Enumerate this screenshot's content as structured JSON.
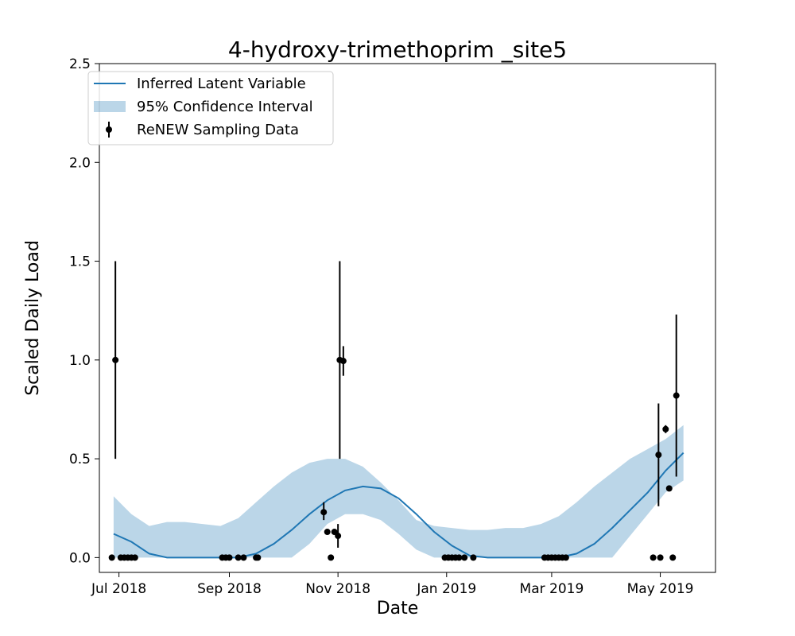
{
  "chart_data": {
    "type": "line",
    "title": "4-hydroxy-trimethoprim _site5",
    "xlabel": "Date",
    "ylabel": "Scaled Daily Load",
    "xlim": [
      "2018-06-20",
      "2019-06-01"
    ],
    "ylim": [
      -0.075,
      2.5
    ],
    "x_ticks": [
      {
        "date": "2018-07-01",
        "label": "Jul 2018"
      },
      {
        "date": "2018-09-01",
        "label": "Sep 2018"
      },
      {
        "date": "2018-11-01",
        "label": "Nov 2018"
      },
      {
        "date": "2019-01-01",
        "label": "Jan 2019"
      },
      {
        "date": "2019-03-01",
        "label": "Mar 2019"
      },
      {
        "date": "2019-05-01",
        "label": "May 2019"
      }
    ],
    "y_ticks": [
      {
        "value": 0.0,
        "label": "0.0"
      },
      {
        "value": 0.5,
        "label": "0.5"
      },
      {
        "value": 1.0,
        "label": "1.0"
      },
      {
        "value": 1.5,
        "label": "1.5"
      },
      {
        "value": 2.0,
        "label": "2.0"
      },
      {
        "value": 2.5,
        "label": "2.5"
      }
    ],
    "grid": false,
    "legend_position": "top-left",
    "colors": {
      "line": "#1f77b4",
      "band": "#1f77b4",
      "points": "#000000"
    },
    "series": [
      {
        "name": "Inferred Latent Variable",
        "kind": "line",
        "x": [
          "2018-06-28",
          "2018-07-08",
          "2018-07-18",
          "2018-07-28",
          "2018-08-07",
          "2018-08-17",
          "2018-08-27",
          "2018-09-06",
          "2018-09-16",
          "2018-09-26",
          "2018-10-06",
          "2018-10-16",
          "2018-10-26",
          "2018-11-05",
          "2018-11-15",
          "2018-11-25",
          "2018-12-05",
          "2018-12-15",
          "2018-12-25",
          "2019-01-04",
          "2019-01-14",
          "2019-01-24",
          "2019-02-03",
          "2019-02-13",
          "2019-02-23",
          "2019-03-05",
          "2019-03-15",
          "2019-03-25",
          "2019-04-04",
          "2019-04-14",
          "2019-04-24",
          "2019-05-04",
          "2019-05-14"
        ],
        "y": [
          0.12,
          0.08,
          0.02,
          0,
          0,
          0,
          0,
          0,
          0.02,
          0.07,
          0.14,
          0.22,
          0.29,
          0.34,
          0.36,
          0.35,
          0.3,
          0.22,
          0.13,
          0.06,
          0.01,
          0,
          0,
          0,
          0,
          0,
          0.02,
          0.07,
          0.15,
          0.24,
          0.33,
          0.44,
          0.53
        ]
      },
      {
        "name": "95% Confidence Interval",
        "kind": "band",
        "x": [
          "2018-06-28",
          "2018-07-08",
          "2018-07-18",
          "2018-07-28",
          "2018-08-07",
          "2018-08-17",
          "2018-08-27",
          "2018-09-06",
          "2018-09-16",
          "2018-09-26",
          "2018-10-06",
          "2018-10-16",
          "2018-10-26",
          "2018-11-05",
          "2018-11-15",
          "2018-11-25",
          "2018-12-05",
          "2018-12-15",
          "2018-12-25",
          "2019-01-04",
          "2019-01-14",
          "2019-01-24",
          "2019-02-03",
          "2019-02-13",
          "2019-02-23",
          "2019-03-05",
          "2019-03-15",
          "2019-03-25",
          "2019-04-04",
          "2019-04-14",
          "2019-04-24",
          "2019-05-04",
          "2019-05-14"
        ],
        "lower": [
          0,
          0,
          0,
          0,
          0,
          0,
          0,
          0,
          0,
          0,
          0,
          0.07,
          0.17,
          0.22,
          0.22,
          0.19,
          0.12,
          0.04,
          0,
          0,
          0,
          0,
          0,
          0,
          0,
          0,
          0,
          0,
          0,
          0.11,
          0.22,
          0.33,
          0.39
        ],
        "upper": [
          0.31,
          0.22,
          0.16,
          0.18,
          0.18,
          0.17,
          0.16,
          0.2,
          0.28,
          0.36,
          0.43,
          0.48,
          0.5,
          0.5,
          0.46,
          0.38,
          0.29,
          0.19,
          0.16,
          0.15,
          0.14,
          0.14,
          0.15,
          0.15,
          0.17,
          0.21,
          0.28,
          0.36,
          0.43,
          0.5,
          0.55,
          0.6,
          0.67
        ]
      },
      {
        "name": "ReNEW Sampling Data",
        "kind": "errorbar",
        "points": [
          {
            "x": "2018-06-27",
            "y": 0
          },
          {
            "x": "2018-06-29",
            "y": 1.0,
            "lo": 0.5,
            "hi": 1.5
          },
          {
            "x": "2018-07-02",
            "y": 0
          },
          {
            "x": "2018-07-04",
            "y": 0
          },
          {
            "x": "2018-07-06",
            "y": 0
          },
          {
            "x": "2018-07-08",
            "y": 0
          },
          {
            "x": "2018-07-10",
            "y": 0
          },
          {
            "x": "2018-08-28",
            "y": 0
          },
          {
            "x": "2018-08-30",
            "y": 0
          },
          {
            "x": "2018-09-01",
            "y": 0
          },
          {
            "x": "2018-09-06",
            "y": 0
          },
          {
            "x": "2018-09-09",
            "y": 0
          },
          {
            "x": "2018-09-16",
            "y": 0
          },
          {
            "x": "2018-09-17",
            "y": 0
          },
          {
            "x": "2018-10-24",
            "y": 0.23,
            "lo": 0.19,
            "hi": 0.28
          },
          {
            "x": "2018-10-26",
            "y": 0.13
          },
          {
            "x": "2018-10-28",
            "y": 0
          },
          {
            "x": "2018-10-30",
            "y": 0.13
          },
          {
            "x": "2018-11-01",
            "y": 0.11,
            "lo": 0.05,
            "hi": 0.17
          },
          {
            "x": "2018-11-02",
            "y": 1.0,
            "lo": 0.5,
            "hi": 1.5
          },
          {
            "x": "2018-11-04",
            "y": 0.995,
            "lo": 0.92,
            "hi": 1.07
          },
          {
            "x": "2018-12-31",
            "y": 0
          },
          {
            "x": "2019-01-02",
            "y": 0
          },
          {
            "x": "2019-01-04",
            "y": 0
          },
          {
            "x": "2019-01-06",
            "y": 0
          },
          {
            "x": "2019-01-08",
            "y": 0
          },
          {
            "x": "2019-01-11",
            "y": 0
          },
          {
            "x": "2019-01-16",
            "y": 0
          },
          {
            "x": "2019-02-25",
            "y": 0
          },
          {
            "x": "2019-02-27",
            "y": 0
          },
          {
            "x": "2019-03-01",
            "y": 0
          },
          {
            "x": "2019-03-03",
            "y": 0
          },
          {
            "x": "2019-03-05",
            "y": 0
          },
          {
            "x": "2019-03-07",
            "y": 0
          },
          {
            "x": "2019-03-09",
            "y": 0
          },
          {
            "x": "2019-04-27",
            "y": 0
          },
          {
            "x": "2019-04-30",
            "y": 0.52,
            "lo": 0.26,
            "hi": 0.78
          },
          {
            "x": "2019-05-01",
            "y": 0
          },
          {
            "x": "2019-05-04",
            "y": 0.65,
            "lo": 0.63,
            "hi": 0.67
          },
          {
            "x": "2019-05-06",
            "y": 0.35
          },
          {
            "x": "2019-05-08",
            "y": 0
          },
          {
            "x": "2019-05-10",
            "y": 0.82,
            "lo": 0.41,
            "hi": 1.23
          }
        ]
      }
    ]
  }
}
